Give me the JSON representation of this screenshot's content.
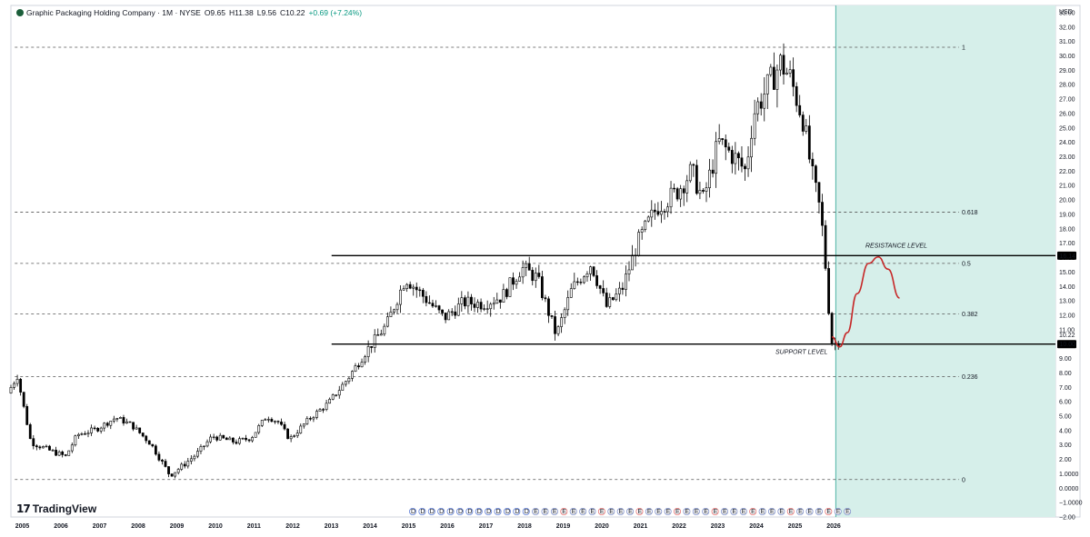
{
  "header": {
    "title": "Graphic Packaging Holding Company · 1M · NYSE",
    "open": "O9.65",
    "high": "H11.38",
    "low": "L9.56",
    "close": "C10.22",
    "change": "+0.69 (+7.24%)"
  },
  "branding": {
    "name": "TradingView"
  },
  "colors": {
    "up": "#ffffff",
    "down": "#000000",
    "candle_outline": "#000000",
    "highlight_zone": "#d6efea",
    "highlight_edge": "#4fb3a4",
    "projection_curve": "#c62828",
    "fib_line": "#555555",
    "level_line": "#000000",
    "earnings_e": "#e57373",
    "dividend_d": "#5b7bd5"
  },
  "chart_data": {
    "type": "candlestick",
    "currency": "USD",
    "ylim": [
      -2,
      33.5
    ],
    "y_ticks": [
      "33.00",
      "32.00",
      "31.00",
      "30.00",
      "29.00",
      "28.00",
      "27.00",
      "26.00",
      "25.00",
      "24.00",
      "23.00",
      "22.00",
      "21.00",
      "20.00",
      "19.00",
      "18.00",
      "17.00",
      "16.00",
      "15.00",
      "14.00",
      "13.00",
      "12.00",
      "11.00",
      "10.00",
      "9.00",
      "8.00",
      "7.00",
      "6.00",
      "5.00",
      "4.00",
      "3.00",
      "2.00",
      "1.0000",
      "0.0000",
      "−1.0000",
      "−2.00"
    ],
    "x_labels": [
      "2005",
      "2006",
      "2007",
      "2008",
      "2009",
      "2010",
      "2011",
      "2012",
      "2013",
      "2014",
      "2015",
      "2016",
      "2017",
      "2018",
      "2019",
      "2020",
      "2021",
      "2022",
      "2023",
      "2024",
      "2025",
      "2026"
    ],
    "x_range": [
      2004.7,
      2026.3
    ],
    "last_price": 10.22,
    "price_badges": [
      {
        "label": "16.14",
        "value": 16.14
      },
      {
        "label": "10.00",
        "value": 10.0
      }
    ],
    "horizontal_levels": [
      {
        "label": "RESISTANCE LEVEL",
        "value": 16.14,
        "x_start": 2013.0
      },
      {
        "label": "SUPPORT LEVEL",
        "value": 10.0,
        "x_start": 2013.0
      }
    ],
    "fib_levels": [
      {
        "label": "1",
        "value": 30.6
      },
      {
        "label": "0.618",
        "value": 19.15
      },
      {
        "label": "0.5",
        "value": 15.6
      },
      {
        "label": "0.382",
        "value": 12.1
      },
      {
        "label": "0.236",
        "value": 7.75
      },
      {
        "label": "0",
        "value": 0.6
      }
    ],
    "fib_x_range": [
      2004.8,
      2025.8
    ],
    "highlight_zone": {
      "x_start": 2026.05,
      "x_end": 2030.0
    },
    "projection_curve": [
      {
        "x": 2025.95,
        "y": 10.5
      },
      {
        "x": 2026.15,
        "y": 9.8
      },
      {
        "x": 2026.35,
        "y": 10.8
      },
      {
        "x": 2026.6,
        "y": 13.5
      },
      {
        "x": 2026.9,
        "y": 15.6
      },
      {
        "x": 2027.15,
        "y": 16.05
      },
      {
        "x": 2027.4,
        "y": 15.2
      },
      {
        "x": 2027.7,
        "y": 13.2
      }
    ],
    "yearly_path": [
      {
        "x": 2004.7,
        "v": 6.6
      },
      {
        "x": 2004.95,
        "v": 7.8
      },
      {
        "x": 2005.3,
        "v": 3.2
      },
      {
        "x": 2005.8,
        "v": 2.6
      },
      {
        "x": 2006.2,
        "v": 2.2
      },
      {
        "x": 2006.5,
        "v": 3.7
      },
      {
        "x": 2007.0,
        "v": 4.1
      },
      {
        "x": 2007.5,
        "v": 4.9
      },
      {
        "x": 2007.9,
        "v": 4.4
      },
      {
        "x": 2008.4,
        "v": 3.1
      },
      {
        "x": 2008.9,
        "v": 0.9
      },
      {
        "x": 2009.2,
        "v": 1.5
      },
      {
        "x": 2009.6,
        "v": 2.4
      },
      {
        "x": 2010.0,
        "v": 3.6
      },
      {
        "x": 2010.6,
        "v": 3.2
      },
      {
        "x": 2011.0,
        "v": 3.5
      },
      {
        "x": 2011.4,
        "v": 5.0
      },
      {
        "x": 2011.7,
        "v": 4.6
      },
      {
        "x": 2012.0,
        "v": 3.4
      },
      {
        "x": 2012.5,
        "v": 4.8
      },
      {
        "x": 2013.0,
        "v": 5.9
      },
      {
        "x": 2013.5,
        "v": 7.6
      },
      {
        "x": 2014.0,
        "v": 9.6
      },
      {
        "x": 2014.5,
        "v": 11.3
      },
      {
        "x": 2015.0,
        "v": 14.6
      },
      {
        "x": 2015.5,
        "v": 13.2
      },
      {
        "x": 2016.0,
        "v": 11.8
      },
      {
        "x": 2016.5,
        "v": 12.9
      },
      {
        "x": 2017.0,
        "v": 12.8
      },
      {
        "x": 2017.5,
        "v": 13.3
      },
      {
        "x": 2018.0,
        "v": 15.3
      },
      {
        "x": 2018.4,
        "v": 14.6
      },
      {
        "x": 2018.9,
        "v": 10.6
      },
      {
        "x": 2019.3,
        "v": 13.8
      },
      {
        "x": 2019.8,
        "v": 15.6
      },
      {
        "x": 2020.2,
        "v": 12.6
      },
      {
        "x": 2020.6,
        "v": 13.8
      },
      {
        "x": 2021.0,
        "v": 17.0
      },
      {
        "x": 2021.5,
        "v": 19.5
      },
      {
        "x": 2022.0,
        "v": 20.5
      },
      {
        "x": 2022.4,
        "v": 22.0
      },
      {
        "x": 2022.7,
        "v": 20.0
      },
      {
        "x": 2023.1,
        "v": 24.0
      },
      {
        "x": 2023.5,
        "v": 23.0
      },
      {
        "x": 2023.8,
        "v": 22.0
      },
      {
        "x": 2024.0,
        "v": 26.0
      },
      {
        "x": 2024.4,
        "v": 28.0
      },
      {
        "x": 2024.7,
        "v": 29.5
      },
      {
        "x": 2024.95,
        "v": 28.5
      },
      {
        "x": 2025.3,
        "v": 25.5
      },
      {
        "x": 2025.5,
        "v": 22.0
      },
      {
        "x": 2025.75,
        "v": 19.0
      },
      {
        "x": 2025.85,
        "v": 16.0
      },
      {
        "x": 2025.95,
        "v": 12.5
      },
      {
        "x": 2026.05,
        "v": 9.65
      },
      {
        "x": 2026.15,
        "v": 10.22
      }
    ],
    "events_row": {
      "dividend_marker": "D",
      "earnings_marker": "E",
      "dividend_count": 13,
      "earnings_count": 34,
      "x_start": 2015.1,
      "x_end": 2026.35
    }
  }
}
